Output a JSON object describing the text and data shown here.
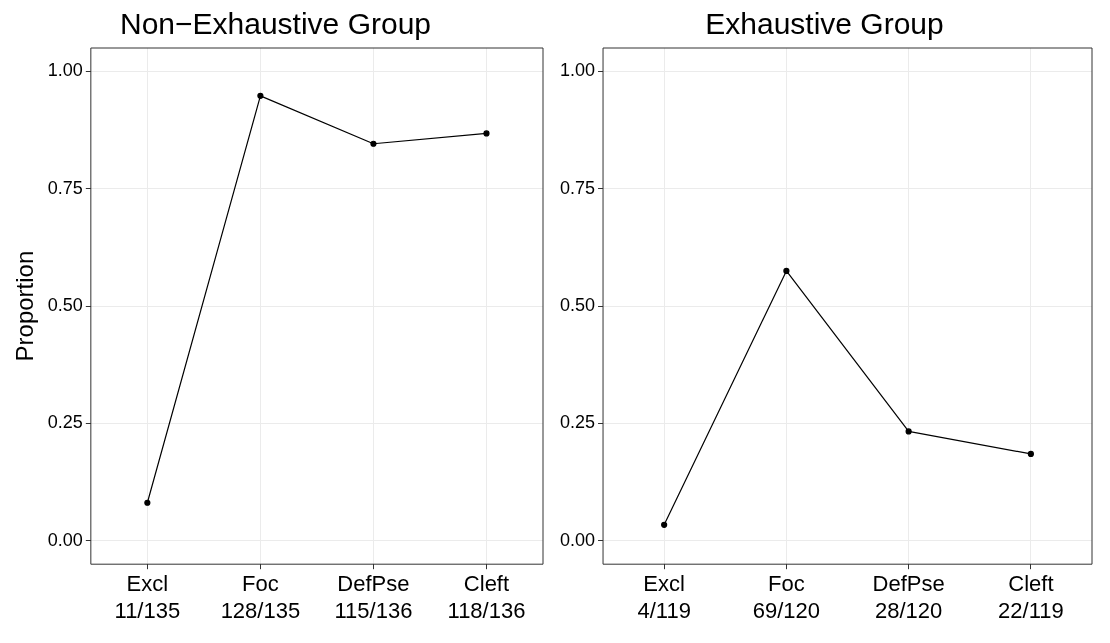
{
  "chart_data": [
    {
      "type": "line",
      "title": "Non−Exhaustive Group",
      "ylabel": "Proportion",
      "categories": [
        "Excl\n11/135",
        "Foc\n128/135",
        "DefPse\n115/136",
        "Cleft\n118/136"
      ],
      "series": [
        {
          "color": "#000000",
          "values": [
            0.081,
            0.948,
            0.846,
            0.868
          ]
        }
      ],
      "ylim": [
        -0.05,
        1.05
      ],
      "yticks": [
        {
          "value": 0,
          "label": "0.00"
        },
        {
          "value": 0.25,
          "label": "0.25"
        },
        {
          "value": 0.5,
          "label": "0.50"
        },
        {
          "value": 0.75,
          "label": "0.75"
        },
        {
          "value": 1,
          "label": "1.00"
        }
      ],
      "grid": true,
      "marker": "circle",
      "line_style": "solid"
    },
    {
      "type": "line",
      "title": "Exhaustive Group",
      "categories": [
        "Excl\n4/119",
        "Foc\n69/120",
        "DefPse\n28/120",
        "Cleft\n22/119"
      ],
      "series": [
        {
          "color": "#000000",
          "values": [
            0.034,
            0.575,
            0.233,
            0.185
          ]
        }
      ],
      "ylim": [
        -0.05,
        1.05
      ],
      "yticks": [
        {
          "value": 0,
          "label": "0.00"
        },
        {
          "value": 0.25,
          "label": "0.25"
        },
        {
          "value": 0.5,
          "label": "0.50"
        },
        {
          "value": 0.75,
          "label": "0.75"
        },
        {
          "value": 1,
          "label": "1.00"
        }
      ],
      "grid": true,
      "marker": "circle",
      "line_style": "solid"
    }
  ]
}
